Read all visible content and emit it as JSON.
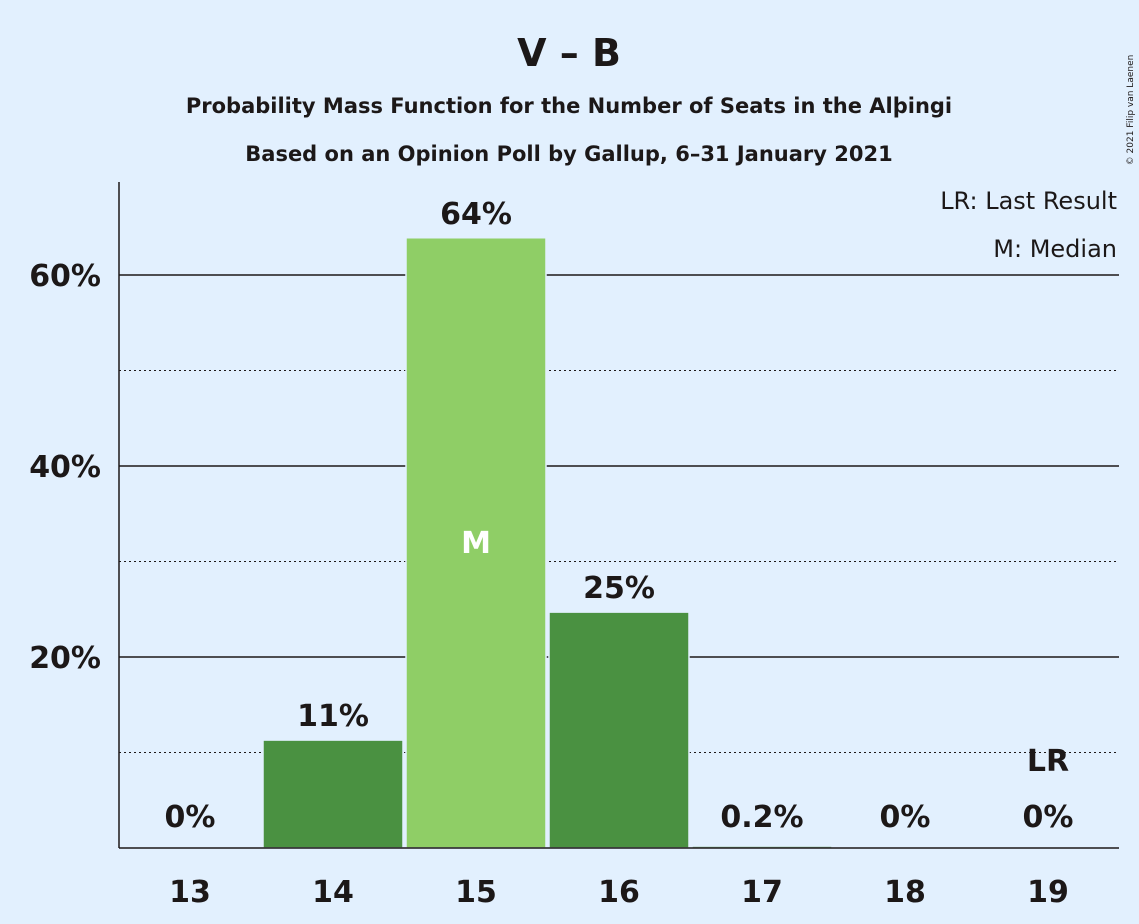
{
  "chart_data": {
    "type": "bar",
    "title": "V – B",
    "subtitle": "Probability Mass Function for the Number of Seats in the Alþingi",
    "subtitle2": "Based on an Opinion Poll by Gallup, 6–31 January 2021",
    "categories": [
      "13",
      "14",
      "15",
      "16",
      "17",
      "18",
      "19"
    ],
    "values": [
      0,
      11.3,
      63.9,
      24.7,
      0.2,
      0,
      0
    ],
    "value_labels": [
      "0%",
      "11%",
      "64%",
      "25%",
      "0.2%",
      "0%",
      "0%"
    ],
    "bar_colors": [
      "#4a9141",
      "#4a9141",
      "#8fce66",
      "#4a9141",
      "#4a9141",
      "#4a9141",
      "#4a9141"
    ],
    "ylim": [
      0,
      70
    ],
    "yticks": [
      20,
      40,
      60
    ],
    "ytick_labels": [
      "20%",
      "40%",
      "60%"
    ],
    "minor_gridlines": [
      10,
      30,
      50
    ],
    "median_index": 2,
    "median_marker": "M",
    "last_result_index": 6,
    "last_result_marker": "LR",
    "legend": [
      "LR: Last Result",
      "M: Median"
    ],
    "legend_position": "top-right",
    "copyright": "© 2021 Filip van Laenen"
  }
}
